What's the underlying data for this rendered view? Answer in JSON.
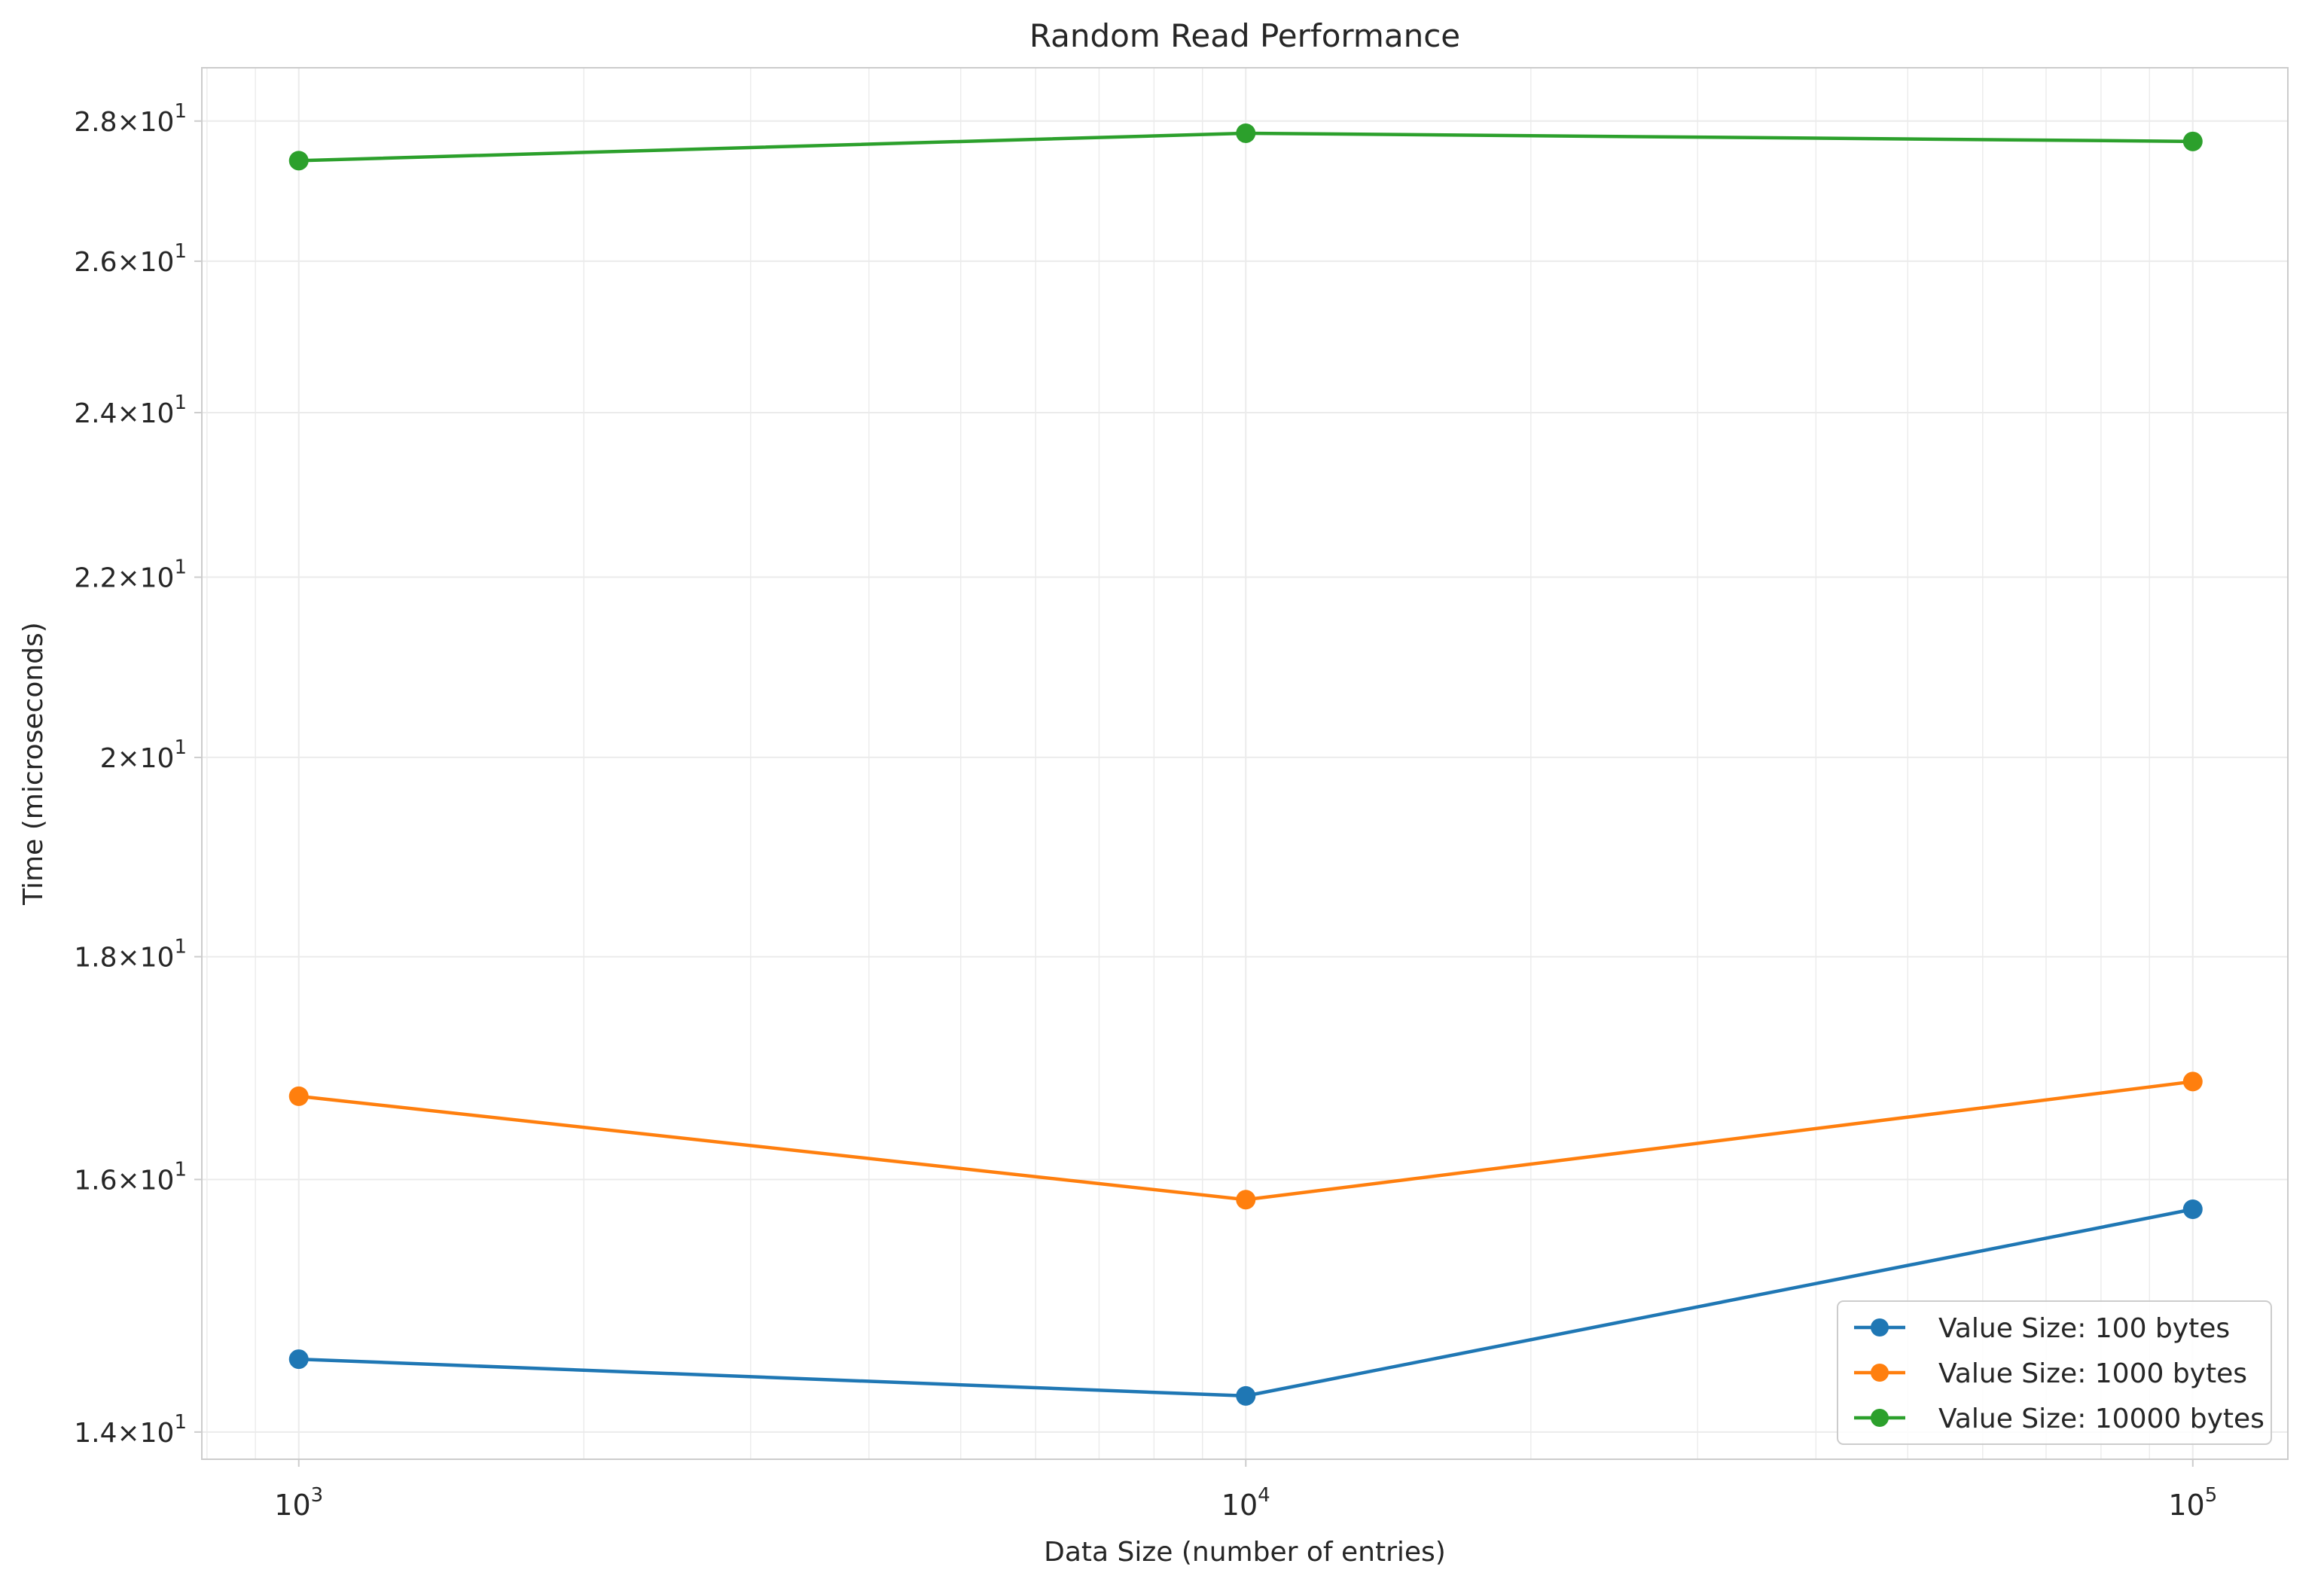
{
  "chart_data": {
    "type": "line",
    "title": "Random Read Performance",
    "xlabel": "Data Size (number of entries)",
    "ylabel": "Time (microseconds)",
    "x_scale": "log",
    "y_scale": "log",
    "xlim": [
      790,
      126000
    ],
    "ylim": [
      13.8,
      28.8
    ],
    "grid": true,
    "legend_position": "lower-right",
    "x": [
      1000,
      10000,
      100000
    ],
    "x_ticks": [
      {
        "value": 1000,
        "base": "10",
        "exp": "3"
      },
      {
        "value": 10000,
        "base": "10",
        "exp": "4"
      },
      {
        "value": 100000,
        "base": "10",
        "exp": "5"
      }
    ],
    "y_ticks": [
      {
        "value": 14,
        "mantissa": "1.4",
        "base": "10",
        "exp": "1"
      },
      {
        "value": 16,
        "mantissa": "1.6",
        "base": "10",
        "exp": "1"
      },
      {
        "value": 18,
        "mantissa": "1.8",
        "base": "10",
        "exp": "1"
      },
      {
        "value": 20,
        "mantissa": "2",
        "base": "10",
        "exp": "1"
      },
      {
        "value": 22,
        "mantissa": "2.2",
        "base": "10",
        "exp": "1"
      },
      {
        "value": 24,
        "mantissa": "2.4",
        "base": "10",
        "exp": "1"
      },
      {
        "value": 26,
        "mantissa": "2.6",
        "base": "10",
        "exp": "1"
      },
      {
        "value": 28,
        "mantissa": "2.8",
        "base": "10",
        "exp": "1"
      }
    ],
    "series": [
      {
        "name": "Value Size: 100 bytes",
        "color": "#1f77b4",
        "values": [
          14.55,
          14.27,
          15.75
        ]
      },
      {
        "name": "Value Size: 1000 bytes",
        "color": "#ff7f0e",
        "values": [
          16.72,
          15.83,
          16.85
        ]
      },
      {
        "name": "Value Size: 10000 bytes",
        "color": "#2ca02c",
        "values": [
          27.42,
          27.82,
          27.7
        ]
      }
    ]
  }
}
